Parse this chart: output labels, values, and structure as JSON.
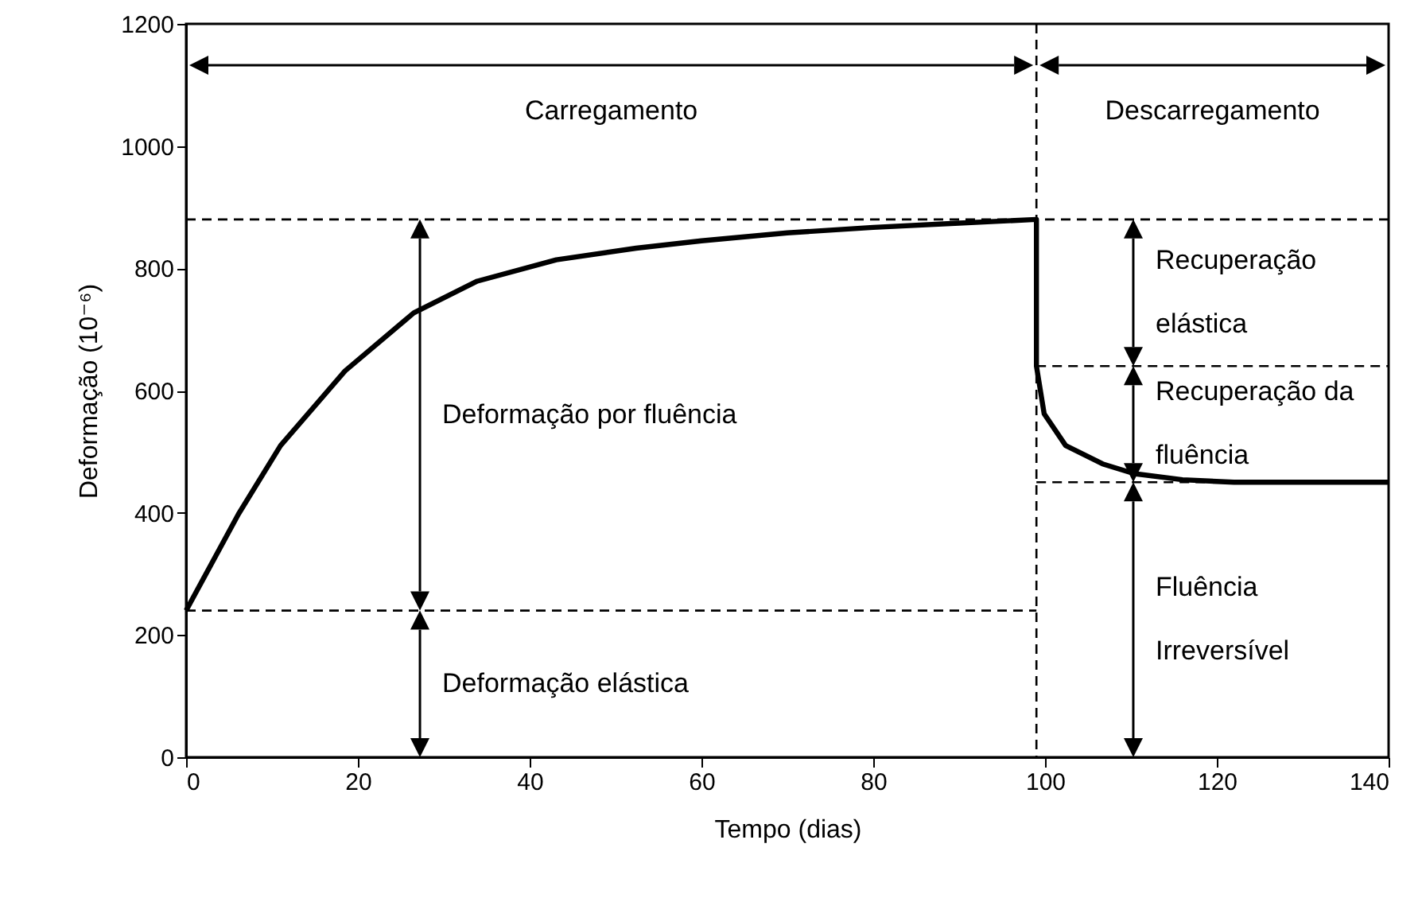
{
  "chart_data": {
    "type": "line",
    "xlabel": "Tempo (dias)",
    "ylabel": "Deformação (10⁻⁶)",
    "xlim": [
      0,
      140
    ],
    "xticks": [
      0,
      20,
      40,
      60,
      80,
      100,
      120,
      140
    ],
    "ylim": [
      0,
      1200
    ],
    "yticks": [
      0,
      200,
      400,
      600,
      800,
      1000,
      1200
    ],
    "series": [
      {
        "color": "#000000",
        "line_style": "solid",
        "x": [
          0,
          6.1,
          11,
          18.5,
          26.5,
          33.9,
          43.1,
          52.4,
          60,
          70,
          80,
          90,
          99,
          99,
          99.9,
          102.4,
          106.7,
          110.4,
          116,
          122,
          140
        ],
        "values": [
          240,
          398,
          510,
          632,
          727,
          779,
          814,
          833,
          845,
          858,
          867,
          874,
          880,
          640,
          562,
          510,
          480,
          464,
          454,
          450,
          450
        ]
      },
      {
        "color": "#000000",
        "line_style": "dashed",
        "x": [
          0,
          99
        ],
        "values": [
          240,
          240
        ]
      },
      {
        "color": "#000000",
        "line_style": "dashed",
        "x": [
          99,
          140
        ],
        "values": [
          640,
          640
        ]
      },
      {
        "color": "#000000",
        "line_style": "dashed",
        "x": [
          99,
          140
        ],
        "values": [
          450,
          450
        ]
      }
    ],
    "ref_lines": [
      {
        "axis": "y",
        "value": 880,
        "color": "#000000",
        "line_style": "dashed"
      },
      {
        "axis": "x",
        "value": 99,
        "color": "#000000",
        "line_style": "dashed"
      }
    ],
    "annotations": [
      "Carregamento",
      "Descarregamento",
      "Deformação por fluência",
      "Deformação elástica",
      "Recuperação elástica",
      "Recuperação da fluência",
      "Fluência Irreversível"
    ]
  }
}
